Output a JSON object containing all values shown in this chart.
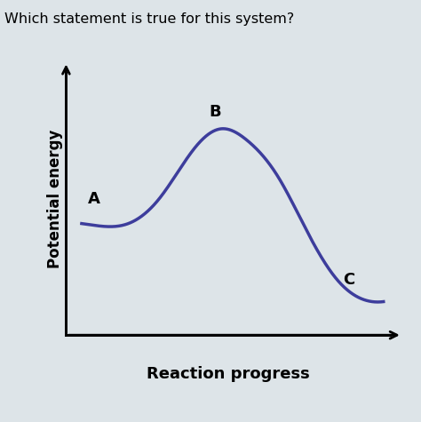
{
  "title": "Which statement is true for this system?",
  "xlabel": "Reaction progress",
  "ylabel": "Potential energy",
  "background_color": "#dde4e8",
  "curve_color": "#3d3d9c",
  "curve_linewidth": 2.5,
  "label_A": "A",
  "label_B": "B",
  "label_C": "C",
  "label_fontsize": 13,
  "xlabel_fontsize": 13,
  "ylabel_fontsize": 12,
  "title_fontsize": 11.5,
  "xlim": [
    -0.05,
    1.1
  ],
  "ylim": [
    -0.05,
    1.1
  ]
}
